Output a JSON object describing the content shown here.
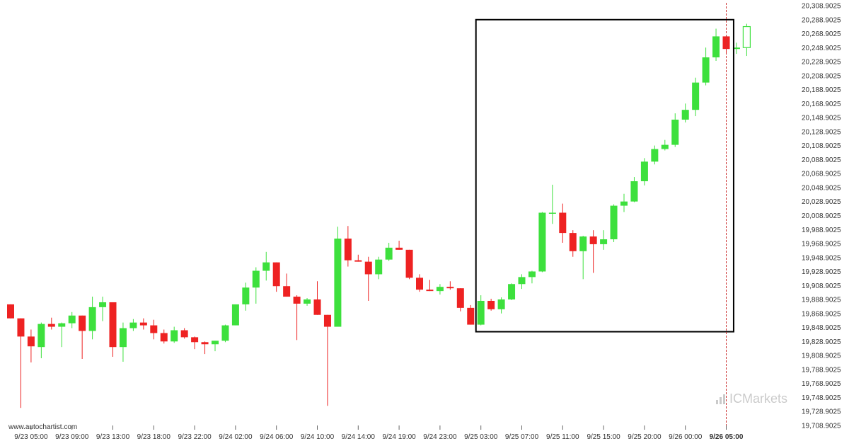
{
  "watermark": {
    "source": "www.autochartist.com",
    "logo_text": "ICMarkets"
  },
  "colors": {
    "up": "#3de03d",
    "down": "#ee2222",
    "wick_up": "#3de03d",
    "wick_down": "#ee2222",
    "pattern_box": "#000000",
    "current_line": "#cc3333"
  },
  "chart_data": {
    "type": "candlestick",
    "title": "",
    "xlabel": "",
    "ylabel": "",
    "grid": false,
    "ylim": [
      19708.9025,
      20308.9025
    ],
    "y_ticks": [
      "20,308.9025",
      "20,288.9025",
      "20,268.9025",
      "20,248.9025",
      "20,228.9025",
      "20,208.9025",
      "20,188.9025",
      "20,168.9025",
      "20,148.9025",
      "20,128.9025",
      "20,108.9025",
      "20,088.9025",
      "20,068.9025",
      "20,048.9025",
      "20,028.9025",
      "20,008.9025",
      "19,988.9025",
      "19,968.9025",
      "19,948.9025",
      "19,928.9025",
      "19,908.9025",
      "19,888.9025",
      "19,868.9025",
      "19,848.9025",
      "19,828.9025",
      "19,808.9025",
      "19,788.9025",
      "19,768.9025",
      "19,748.9025",
      "19,728.9025",
      "19,708.9025"
    ],
    "x_ticks": [
      {
        "label": "9/23 05:00",
        "index": 2
      },
      {
        "label": "9/23 09:00",
        "index": 6
      },
      {
        "label": "9/23 13:00",
        "index": 10
      },
      {
        "label": "9/23 18:00",
        "index": 14
      },
      {
        "label": "9/23 22:00",
        "index": 18
      },
      {
        "label": "9/24 02:00",
        "index": 22
      },
      {
        "label": "9/24 06:00",
        "index": 26
      },
      {
        "label": "9/24 10:00",
        "index": 30
      },
      {
        "label": "9/24 14:00",
        "index": 34
      },
      {
        "label": "9/24 19:00",
        "index": 38
      },
      {
        "label": "9/24 23:00",
        "index": 42
      },
      {
        "label": "9/25 03:00",
        "index": 46
      },
      {
        "label": "9/25 07:00",
        "index": 50
      },
      {
        "label": "9/25 11:00",
        "index": 54
      },
      {
        "label": "9/25 15:00",
        "index": 58
      },
      {
        "label": "9/25 20:00",
        "index": 62
      },
      {
        "label": "9/26 00:00",
        "index": 66
      },
      {
        "label": "9/26 05:00",
        "index": 70,
        "bold": true
      }
    ],
    "ohlc": [
      [
        19882,
        19882,
        19862,
        19862
      ],
      [
        19862,
        19862,
        19734,
        19836
      ],
      [
        19836,
        19846,
        19799,
        19822
      ],
      [
        19821,
        19856,
        19805,
        19854
      ],
      [
        19854,
        19863,
        19846,
        19850
      ],
      [
        19850,
        19856,
        19821,
        19855
      ],
      [
        19855,
        19871,
        19848,
        19866
      ],
      [
        19866,
        19866,
        19804,
        19844
      ],
      [
        19844,
        19893,
        19832,
        19878
      ],
      [
        19878,
        19893,
        19858,
        19885
      ],
      [
        19885,
        19885,
        19807,
        19821
      ],
      [
        19821,
        19856,
        19800,
        19848
      ],
      [
        19848,
        19861,
        19844,
        19856
      ],
      [
        19856,
        19862,
        19846,
        19852
      ],
      [
        19852,
        19860,
        19832,
        19841
      ],
      [
        19841,
        19846,
        19826,
        19829
      ],
      [
        19829,
        19850,
        19827,
        19845
      ],
      [
        19845,
        19848,
        19833,
        19835
      ],
      [
        19835,
        19836,
        19818,
        19828
      ],
      [
        19828,
        19829,
        19811,
        19825
      ],
      [
        19825,
        19830,
        19815,
        19830
      ],
      [
        19830,
        19853,
        19828,
        19852
      ],
      [
        19852,
        19882,
        19852,
        19882
      ],
      [
        19882,
        19913,
        19873,
        19906
      ],
      [
        19906,
        19935,
        19883,
        19930
      ],
      [
        19930,
        19957,
        19916,
        19942
      ],
      [
        19942,
        19942,
        19900,
        19908
      ],
      [
        19908,
        19926,
        19893,
        19893
      ],
      [
        19893,
        19895,
        19831,
        19883
      ],
      [
        19883,
        19891,
        19880,
        19889
      ],
      [
        19889,
        19915,
        19867,
        19867
      ],
      [
        19867,
        19867,
        19737,
        19850
      ],
      [
        19850,
        19993,
        19850,
        19976
      ],
      [
        19976,
        19994,
        19936,
        19945
      ],
      [
        19945,
        19953,
        19943,
        19943
      ],
      [
        19943,
        19950,
        19887,
        19925
      ],
      [
        19925,
        19950,
        19918,
        19946
      ],
      [
        19946,
        19970,
        19944,
        19963
      ],
      [
        19963,
        19973,
        19960,
        19960
      ],
      [
        19960,
        19960,
        19918,
        19920
      ],
      [
        19920,
        19925,
        19900,
        19903
      ],
      [
        19903,
        19917,
        19901,
        19901
      ],
      [
        19901,
        19911,
        19896,
        19907
      ],
      [
        19907,
        19915,
        19903,
        19905
      ],
      [
        19905,
        19905,
        19872,
        19877
      ],
      [
        19877,
        19881,
        19853,
        19853
      ],
      [
        19853,
        19895,
        19852,
        19887
      ],
      [
        19887,
        19890,
        19873,
        19875
      ],
      [
        19875,
        19892,
        19869,
        19889
      ],
      [
        19889,
        19912,
        19888,
        19911
      ],
      [
        19911,
        19925,
        19904,
        19921
      ],
      [
        19921,
        19930,
        19912,
        19929
      ],
      [
        19929,
        20014,
        19928,
        20013
      ],
      [
        20013,
        20053,
        19997,
        20013
      ],
      [
        20013,
        20026,
        19970,
        19984
      ],
      [
        19984,
        19988,
        19950,
        19958
      ],
      [
        19958,
        19980,
        19918,
        19979
      ],
      [
        19979,
        19988,
        19927,
        19968
      ],
      [
        19968,
        19988,
        19960,
        19975
      ],
      [
        19975,
        20025,
        19971,
        20023
      ],
      [
        20023,
        20040,
        20014,
        20029
      ],
      [
        20029,
        20064,
        20028,
        20058
      ],
      [
        20058,
        20091,
        20052,
        20086
      ],
      [
        20086,
        20109,
        20082,
        20104
      ],
      [
        20104,
        20117,
        20102,
        20110
      ],
      [
        20110,
        20155,
        20107,
        20146
      ],
      [
        20146,
        20169,
        20142,
        20160
      ],
      [
        20160,
        20206,
        20151,
        20199
      ],
      [
        20199,
        20249,
        20195,
        20235
      ],
      [
        20235,
        20276,
        20230,
        20265
      ],
      [
        20265,
        20265,
        20239,
        20247
      ],
      [
        20247,
        20256,
        20240,
        20249
      ],
      [
        20249,
        20283,
        20237,
        20279
      ]
    ],
    "last_candle_hollow": true,
    "annotations": [
      {
        "type": "rectangle",
        "from_index": 46,
        "to_index": 71,
        "y_top": 20288.9,
        "y_bottom": 19842.9
      },
      {
        "type": "vline",
        "index": 70,
        "style": "dashed"
      }
    ]
  }
}
